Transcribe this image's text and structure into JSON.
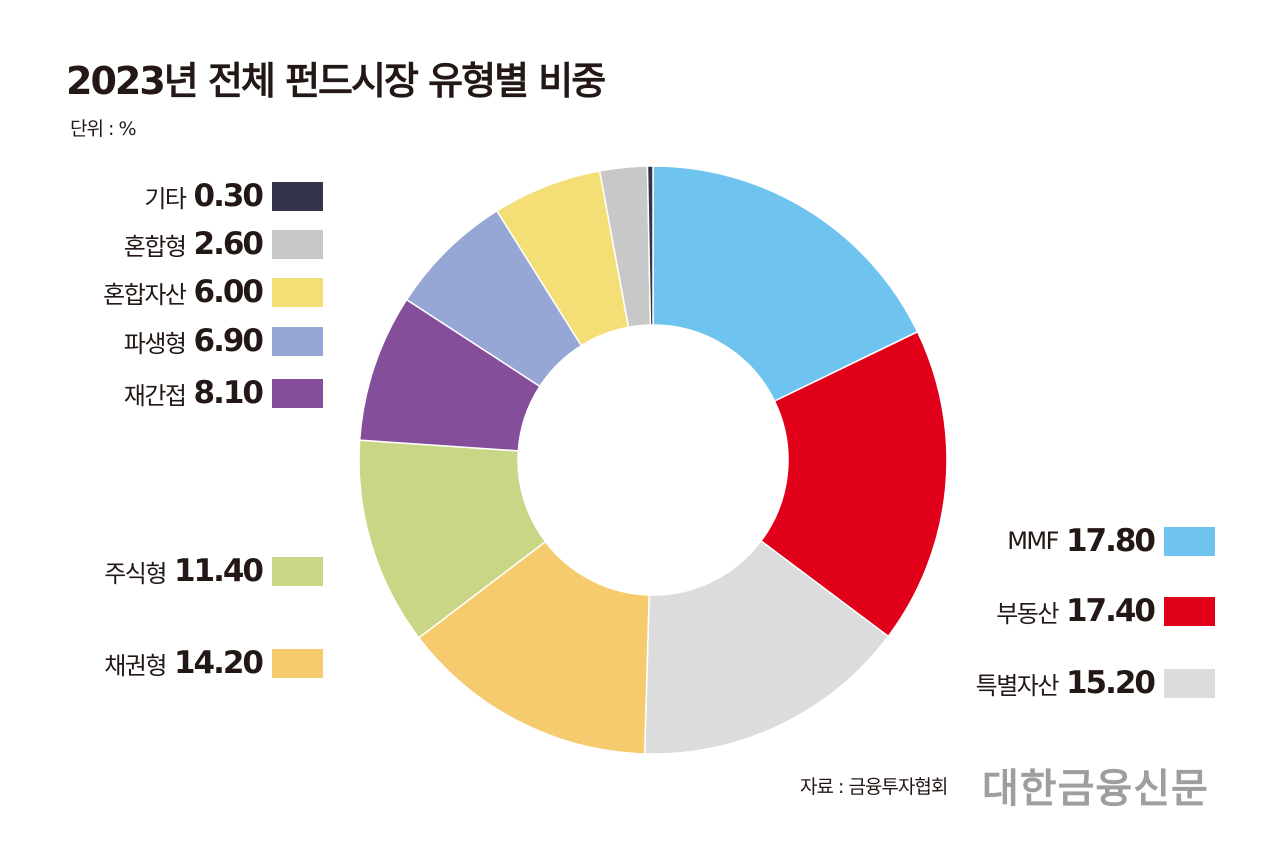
{
  "chart_data": {
    "type": "pie",
    "subtype": "donut",
    "title": "2023년 전체 펀드시장 유형별 비중",
    "unit": "단위 : %",
    "start": "top, clockwise",
    "slices": [
      {
        "label": "MMF",
        "value": 17.8,
        "display": "17.80",
        "color": "#6EC4EE",
        "legend_side": "right"
      },
      {
        "label": "부동산",
        "value": 17.4,
        "display": "17.40",
        "color": "#E00019",
        "legend_side": "right"
      },
      {
        "label": "특별자산",
        "value": 15.2,
        "display": "15.20",
        "color": "#DCDCDC",
        "legend_side": "right"
      },
      {
        "label": "채권형",
        "value": 14.2,
        "display": "14.20",
        "color": "#F6CB6E",
        "legend_side": "left"
      },
      {
        "label": "주식형",
        "value": 11.4,
        "display": "11.40",
        "color": "#C8D686",
        "legend_side": "left"
      },
      {
        "label": "재간접",
        "value": 8.1,
        "display": "8.10",
        "color": "#854E9A",
        "legend_side": "left"
      },
      {
        "label": "파생형",
        "value": 6.9,
        "display": "6.90",
        "color": "#97A7D5",
        "legend_side": "left"
      },
      {
        "label": "혼합자산",
        "value": 6.0,
        "display": "6.00",
        "color": "#F3DF76",
        "legend_side": "left"
      },
      {
        "label": "혼합형",
        "value": 2.6,
        "display": "2.60",
        "color": "#C8C8C8",
        "legend_side": "left"
      },
      {
        "label": "기타",
        "value": 0.3,
        "display": "0.30",
        "color": "#33334A",
        "legend_side": "left"
      }
    ]
  },
  "source": "자료 : 금융투자협회",
  "logo_text": "대한금융신문"
}
